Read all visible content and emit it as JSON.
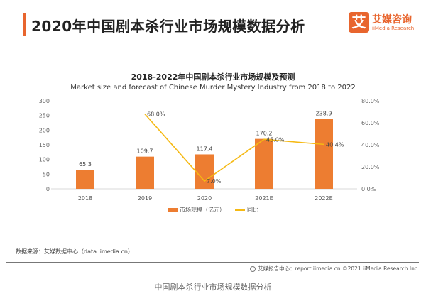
{
  "header": {
    "title": "2020年中国剧本杀行业市场规模数据分析",
    "accent_color": "#e8652e"
  },
  "logo": {
    "mark": "艾",
    "name_cn": "艾媒咨询",
    "name_en": "iiMedia Research"
  },
  "chart_data": {
    "type": "bar+line",
    "title": "2018-2022年中国剧本杀行业市场规模及预测",
    "subtitle": "Market size and forecast of Chinese Murder Mystery Industry from 2018 to 2022",
    "categories": [
      "2018",
      "2019",
      "2020",
      "2021E",
      "2022E"
    ],
    "series": [
      {
        "name": "市场规模（亿元）",
        "type": "bar",
        "axis": "left",
        "color": "#ed7d31",
        "values": [
          65.3,
          109.7,
          117.4,
          170.2,
          238.9
        ],
        "labels": [
          "65.3",
          "109.7",
          "117.4",
          "170.2",
          "238.9"
        ]
      },
      {
        "name": "同比",
        "type": "line",
        "axis": "right",
        "color": "#f5b914",
        "values": [
          null,
          68.0,
          7.0,
          45.0,
          40.4
        ],
        "labels": [
          null,
          "68.0%",
          "7.0%",
          "45.0%",
          "40.4%"
        ]
      }
    ],
    "left_axis": {
      "ylim": [
        0,
        300
      ],
      "ticks": [
        "0",
        "50",
        "100",
        "150",
        "200",
        "250",
        "300"
      ]
    },
    "right_axis": {
      "ylim": [
        0,
        80
      ],
      "ticks": [
        "0.0%",
        "20.0%",
        "40.0%",
        "60.0%",
        "80.0%"
      ]
    },
    "grid": false,
    "legend": "bottom"
  },
  "source": "数据来源：艾媒数据中心（data.iimedia.cn）",
  "footer": "艾媒报告中心：report.iimedia.cn   ©2021  iiMedia Research  Inc",
  "caption": "中国剧本杀行业市场规模数据分析"
}
